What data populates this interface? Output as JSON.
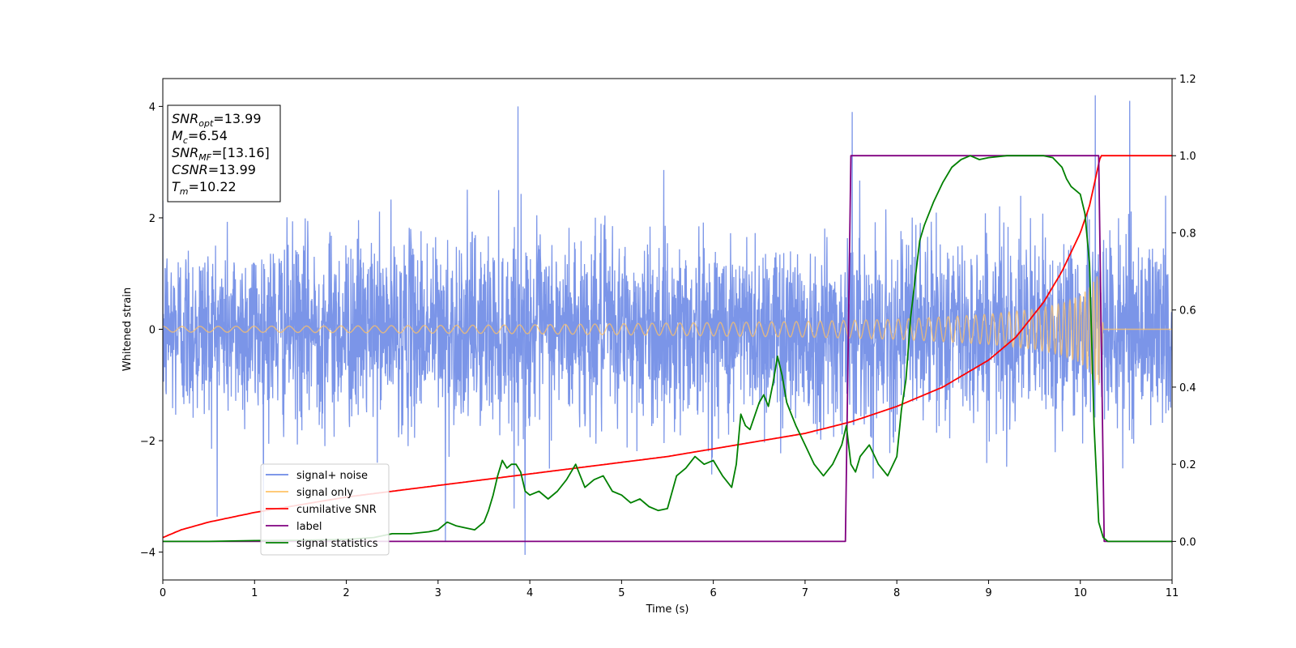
{
  "chart_data": {
    "type": "line",
    "xlabel": "Time (s)",
    "ylabel": "Whitened strain",
    "xlim": [
      0,
      11
    ],
    "ylim_left": [
      -4.5,
      4.5
    ],
    "ylim_right": [
      -0.1,
      1.2
    ],
    "x_ticks": [
      0,
      1,
      2,
      3,
      4,
      5,
      6,
      7,
      8,
      9,
      10,
      11
    ],
    "y_left_ticks": [
      -4,
      -2,
      0,
      2,
      4
    ],
    "y_right_ticks": [
      "0.0",
      "0.2",
      "0.4",
      "0.6",
      "0.8",
      "1.0",
      "1.2"
    ],
    "legend_position": "lower-left",
    "grid": false,
    "info_box": [
      {
        "main": "SNR",
        "sub": "opt",
        "rest": "=13.99"
      },
      {
        "main": "M",
        "sub": "c",
        "rest": "=6.54"
      },
      {
        "main": "SNR",
        "sub": "MF",
        "rest": "=[13.16]"
      },
      {
        "main": "CSNR",
        "sub": "",
        "rest": "=13.99"
      },
      {
        "main": "T",
        "sub": "m",
        "rest": "=10.22"
      }
    ],
    "series": [
      {
        "name": "signal+ noise",
        "color": "#6d8ae6",
        "axis": "left",
        "noise_amplitude_typical": 2.5,
        "noise_peak_values": [
          4.2,
          4.1,
          4.0,
          -4.05,
          3.9,
          -3.8
        ]
      },
      {
        "name": "signal only",
        "color": "#ffc266",
        "axis": "left",
        "envelope": {
          "x": [
            0,
            2,
            4,
            6,
            7,
            8,
            8.5,
            9,
            9.5,
            9.8,
            10.0,
            10.1,
            10.22,
            10.25,
            11
          ],
          "y": [
            0.05,
            0.06,
            0.08,
            0.12,
            0.14,
            0.18,
            0.22,
            0.27,
            0.36,
            0.46,
            0.6,
            0.75,
            1.05,
            0,
            0
          ]
        }
      },
      {
        "name": "cumilative SNR",
        "color": "#ff0000",
        "axis": "right",
        "x": [
          0,
          0.2,
          0.5,
          1,
          1.5,
          2,
          2.5,
          3,
          3.5,
          4,
          4.5,
          5,
          5.5,
          6,
          6.5,
          7,
          7.5,
          8,
          8.5,
          9,
          9.3,
          9.6,
          9.8,
          10.0,
          10.1,
          10.22,
          11
        ],
        "y": [
          0.01,
          0.03,
          0.05,
          0.075,
          0.095,
          0.115,
          0.13,
          0.145,
          0.16,
          0.175,
          0.19,
          0.205,
          0.22,
          0.24,
          0.26,
          0.28,
          0.31,
          0.35,
          0.4,
          0.47,
          0.53,
          0.62,
          0.7,
          0.8,
          0.87,
          1.0,
          1.0
        ]
      },
      {
        "name": "label",
        "color": "#800080",
        "axis": "right",
        "x": [
          0,
          7.44,
          7.5,
          10.2,
          10.26,
          11
        ],
        "y": [
          0,
          0,
          1,
          1,
          0,
          0
        ]
      },
      {
        "name": "signal statistics",
        "color": "#008000",
        "axis": "right",
        "x": [
          0,
          0.5,
          1,
          1.5,
          2,
          2.3,
          2.5,
          2.7,
          2.9,
          3.0,
          3.1,
          3.2,
          3.3,
          3.4,
          3.5,
          3.55,
          3.6,
          3.65,
          3.7,
          3.75,
          3.8,
          3.85,
          3.9,
          3.95,
          4.0,
          4.1,
          4.2,
          4.3,
          4.4,
          4.5,
          4.55,
          4.6,
          4.7,
          4.8,
          4.9,
          5.0,
          5.1,
          5.2,
          5.3,
          5.4,
          5.5,
          5.6,
          5.7,
          5.8,
          5.9,
          6.0,
          6.1,
          6.2,
          6.25,
          6.3,
          6.35,
          6.4,
          6.5,
          6.55,
          6.6,
          6.65,
          6.7,
          6.75,
          6.8,
          6.85,
          6.9,
          7.0,
          7.1,
          7.2,
          7.3,
          7.4,
          7.45,
          7.5,
          7.55,
          7.6,
          7.7,
          7.8,
          7.9,
          8.0,
          8.05,
          8.1,
          8.15,
          8.2,
          8.25,
          8.3,
          8.4,
          8.5,
          8.6,
          8.7,
          8.8,
          8.9,
          9.0,
          9.2,
          9.4,
          9.6,
          9.7,
          9.8,
          9.85,
          9.9,
          9.95,
          10.0,
          10.05,
          10.1,
          10.15,
          10.2,
          10.25,
          10.3,
          10.5,
          11
        ],
        "y": [
          0,
          0,
          0.002,
          0.003,
          0.005,
          0.01,
          0.02,
          0.02,
          0.025,
          0.03,
          0.05,
          0.04,
          0.035,
          0.03,
          0.05,
          0.08,
          0.12,
          0.17,
          0.21,
          0.19,
          0.2,
          0.2,
          0.18,
          0.13,
          0.12,
          0.13,
          0.11,
          0.13,
          0.16,
          0.2,
          0.17,
          0.14,
          0.16,
          0.17,
          0.13,
          0.12,
          0.1,
          0.11,
          0.09,
          0.08,
          0.085,
          0.17,
          0.19,
          0.22,
          0.2,
          0.21,
          0.17,
          0.14,
          0.2,
          0.33,
          0.3,
          0.29,
          0.36,
          0.38,
          0.35,
          0.41,
          0.48,
          0.43,
          0.36,
          0.33,
          0.3,
          0.25,
          0.2,
          0.17,
          0.2,
          0.25,
          0.3,
          0.2,
          0.18,
          0.22,
          0.25,
          0.2,
          0.17,
          0.22,
          0.34,
          0.42,
          0.58,
          0.68,
          0.78,
          0.82,
          0.88,
          0.93,
          0.97,
          0.99,
          1.0,
          0.99,
          0.995,
          1.0,
          1.0,
          1.0,
          0.995,
          0.97,
          0.94,
          0.92,
          0.91,
          0.9,
          0.85,
          0.72,
          0.3,
          0.05,
          0.01,
          0.0,
          0.0,
          0.0
        ]
      }
    ]
  }
}
